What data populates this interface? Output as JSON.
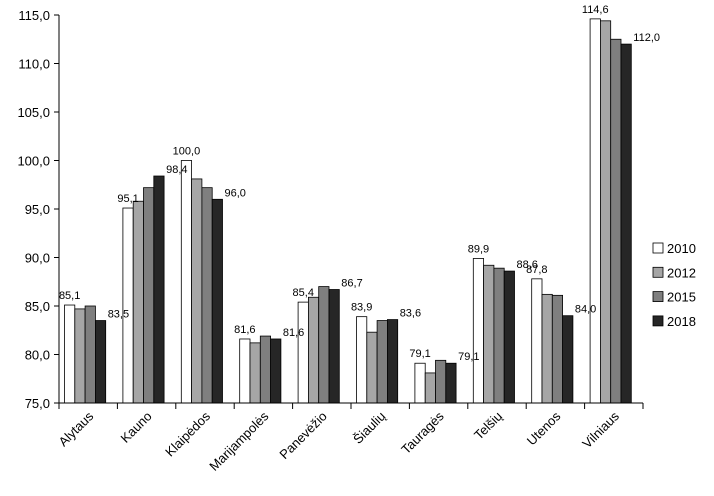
{
  "chart_data": {
    "type": "bar",
    "title": "",
    "xlabel": "",
    "ylabel": "",
    "ylim": [
      75,
      115
    ],
    "ytick_step": 5,
    "ytick_labels": [
      "75,0",
      "80,0",
      "85,0",
      "90,0",
      "95,0",
      "100,0",
      "105,0",
      "110,0",
      "115,0"
    ],
    "grid": false,
    "legend_position": "right",
    "categories": [
      "Alytaus",
      "Kauno",
      "Klaipėdos",
      "Marijampolės",
      "Panevėžio",
      "Šiaulių",
      "Tauragės",
      "Telšių",
      "Utenos",
      "Vilniaus"
    ],
    "series": [
      {
        "name": "2010",
        "color": "#ffffff",
        "values": [
          85.1,
          95.1,
          100.0,
          81.6,
          85.4,
          83.9,
          79.1,
          89.9,
          87.8,
          114.6
        ]
      },
      {
        "name": "2012",
        "color": "#a6a6a6",
        "values": [
          84.7,
          95.8,
          98.1,
          81.2,
          85.9,
          82.3,
          78.1,
          89.2,
          86.2,
          114.4
        ]
      },
      {
        "name": "2015",
        "color": "#7f7f7f",
        "values": [
          85.0,
          97.2,
          97.2,
          81.9,
          87.0,
          83.5,
          79.4,
          88.9,
          86.1,
          112.5
        ]
      },
      {
        "name": "2018",
        "color": "#262626",
        "values": [
          83.5,
          98.4,
          96.0,
          81.6,
          86.7,
          83.6,
          79.1,
          88.6,
          84.0,
          112.0
        ]
      }
    ],
    "data_labels": [
      {
        "category": 0,
        "series": 0,
        "text": "85,1"
      },
      {
        "category": 0,
        "series": 3,
        "text": "83,5"
      },
      {
        "category": 1,
        "series": 0,
        "text": "95,1"
      },
      {
        "category": 1,
        "series": 3,
        "text": "98,4"
      },
      {
        "category": 2,
        "series": 0,
        "text": "100,0"
      },
      {
        "category": 2,
        "series": 3,
        "text": "96,0"
      },
      {
        "category": 3,
        "series": 0,
        "text": "81,6"
      },
      {
        "category": 3,
        "series": 3,
        "text": "81,6"
      },
      {
        "category": 4,
        "series": 0,
        "text": "85,4"
      },
      {
        "category": 4,
        "series": 3,
        "text": "86,7"
      },
      {
        "category": 5,
        "series": 0,
        "text": "83,9"
      },
      {
        "category": 5,
        "series": 3,
        "text": "83,6"
      },
      {
        "category": 6,
        "series": 0,
        "text": "79,1"
      },
      {
        "category": 6,
        "series": 3,
        "text": "79,1"
      },
      {
        "category": 7,
        "series": 0,
        "text": "89,9"
      },
      {
        "category": 7,
        "series": 3,
        "text": "88,6"
      },
      {
        "category": 8,
        "series": 0,
        "text": "87,8"
      },
      {
        "category": 8,
        "series": 3,
        "text": "84,0"
      },
      {
        "category": 9,
        "series": 0,
        "text": "114,6"
      },
      {
        "category": 9,
        "series": 3,
        "text": "112,0"
      }
    ]
  }
}
